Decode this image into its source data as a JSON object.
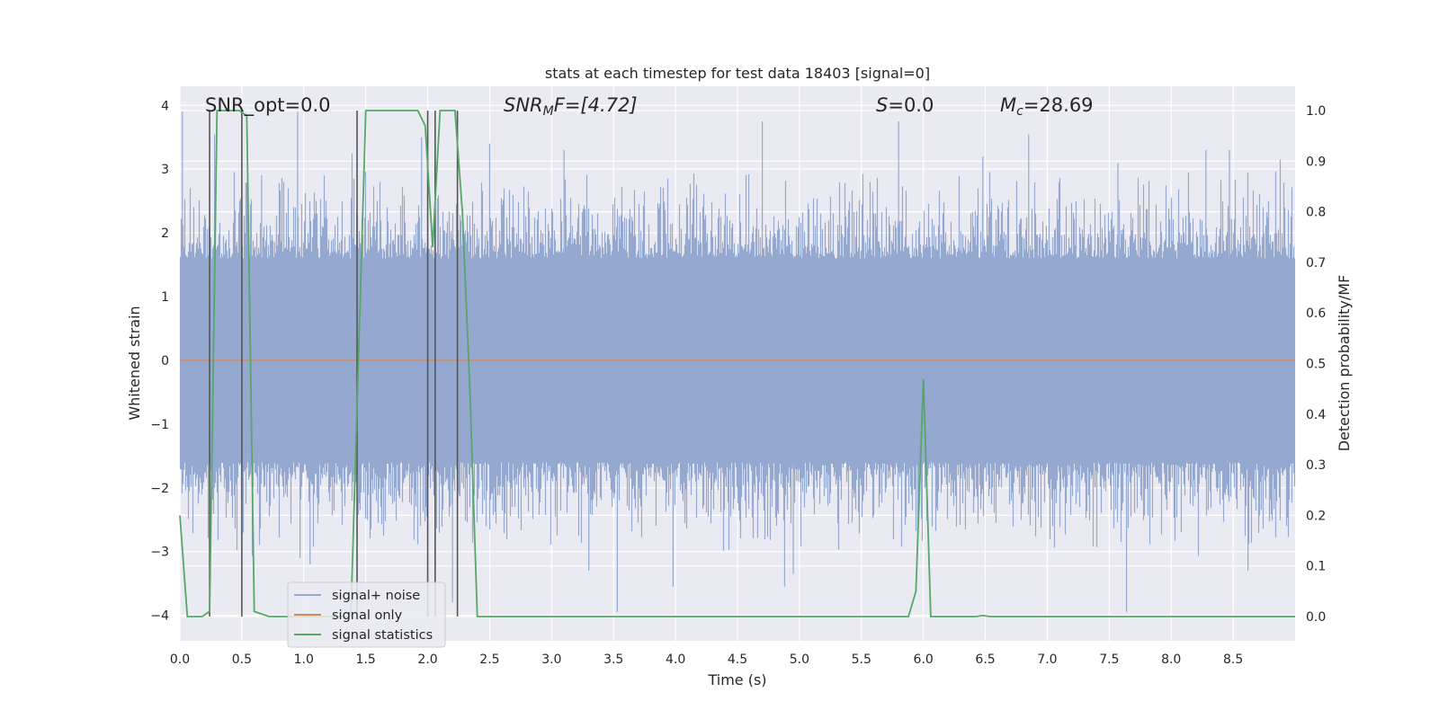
{
  "chart_data": {
    "type": "line",
    "title": "stats at each timestep for test data 18403 [signal=0]",
    "xlabel": "Time (s)",
    "ylabel_left": "Whitened strain",
    "ylabel_right": "Detection probability/MF",
    "xlim": [
      0,
      9.0
    ],
    "ylim_left": [
      -4.4,
      4.3
    ],
    "ylim_right": [
      -0.048,
      1.048
    ],
    "x_ticks": [
      "0.0",
      "0.5",
      "1.0",
      "1.5",
      "2.0",
      "2.5",
      "3.0",
      "3.5",
      "4.0",
      "4.5",
      "5.0",
      "5.5",
      "6.0",
      "6.5",
      "7.0",
      "7.5",
      "8.0",
      "8.5"
    ],
    "y_left_ticks": [
      "4",
      "3",
      "2",
      "1",
      "0",
      "−1",
      "−2",
      "−3",
      "−4"
    ],
    "y_right_ticks": [
      "1.0",
      "0.9",
      "0.8",
      "0.7",
      "0.6",
      "0.5",
      "0.4",
      "0.3",
      "0.2",
      "0.1",
      "0.0"
    ],
    "grid": true,
    "legend_position": "lower-left",
    "annotations": {
      "snr_opt": "SNR_opt=0.0",
      "snr_mf_sym": "SNR",
      "snr_mf_sub": "M",
      "snr_mf_rest": "F=[4.72]",
      "s_sym": "S",
      "s_rest": "=0.0",
      "mc_sym": "M",
      "mc_sub": "c",
      "mc_rest": "=28.69"
    },
    "series": [
      {
        "name": "signal+ noise",
        "color": "#95a9d0",
        "description_type": "noise",
        "band_core": [
          -1.6,
          1.6
        ],
        "extremes": [
          {
            "x": 0.02,
            "y": 3.9
          },
          {
            "x": 0.28,
            "y": 3.55
          },
          {
            "x": 0.66,
            "y": 2.9
          },
          {
            "x": 0.95,
            "y": 3.9
          },
          {
            "x": 0.97,
            "y": -3.1
          },
          {
            "x": 1.05,
            "y": -3.2
          },
          {
            "x": 1.39,
            "y": 3.25
          },
          {
            "x": 1.95,
            "y": 3.5
          },
          {
            "x": 2.2,
            "y": -3.8
          },
          {
            "x": 2.5,
            "y": 3.4
          },
          {
            "x": 3.1,
            "y": 3.3
          },
          {
            "x": 3.3,
            "y": -3.3
          },
          {
            "x": 3.53,
            "y": -3.95
          },
          {
            "x": 3.98,
            "y": -3.55
          },
          {
            "x": 4.7,
            "y": 3.75
          },
          {
            "x": 4.88,
            "y": -3.55
          },
          {
            "x": 4.95,
            "y": -3.35
          },
          {
            "x": 5.8,
            "y": 3.75
          },
          {
            "x": 6.48,
            "y": 3.2
          },
          {
            "x": 6.85,
            "y": 3.55
          },
          {
            "x": 7.57,
            "y": 3.1
          },
          {
            "x": 7.64,
            "y": -3.95
          },
          {
            "x": 8.28,
            "y": 3.3
          },
          {
            "x": 8.47,
            "y": 3.3
          },
          {
            "x": 8.88,
            "y": 3.15
          },
          {
            "x": 8.62,
            "y": -3.3
          }
        ]
      },
      {
        "name": "signal only",
        "color": "#dd8452",
        "x": [
          0,
          9.0
        ],
        "y": [
          0,
          0
        ]
      },
      {
        "name": "signal statistics",
        "color": "#55a868",
        "axis": "right",
        "x": [
          0.0,
          0.06,
          0.18,
          0.24,
          0.3,
          0.36,
          0.42,
          0.48,
          0.54,
          0.6,
          0.72,
          0.84,
          0.96,
          1.08,
          1.2,
          1.32,
          1.38,
          1.44,
          1.5,
          1.62,
          1.74,
          1.86,
          1.92,
          1.98,
          2.04,
          2.1,
          2.16,
          2.22,
          2.28,
          2.34,
          2.4,
          2.46,
          2.52,
          5.88,
          5.94,
          6.0,
          6.06,
          6.42,
          6.48,
          6.54,
          6.6,
          7.2,
          9.0
        ],
        "y": [
          0.2,
          0.0,
          0.0,
          0.01,
          1.0,
          1.0,
          1.0,
          1.0,
          0.99,
          0.01,
          0.0,
          0.0,
          0.0,
          0.0,
          0.0,
          0.0,
          0.0,
          0.5,
          1.0,
          1.0,
          1.0,
          1.0,
          1.0,
          0.97,
          0.73,
          1.0,
          1.0,
          1.0,
          0.8,
          0.45,
          0.0,
          0.0,
          0.0,
          0.0,
          0.05,
          0.47,
          0.0,
          0.0,
          0.002,
          0.0,
          0.0,
          0.0,
          0.0
        ]
      }
    ],
    "vertical_markers": {
      "color": "#555555",
      "x": [
        0.24,
        0.5,
        1.43,
        2.0,
        2.06,
        2.24
      ]
    }
  }
}
